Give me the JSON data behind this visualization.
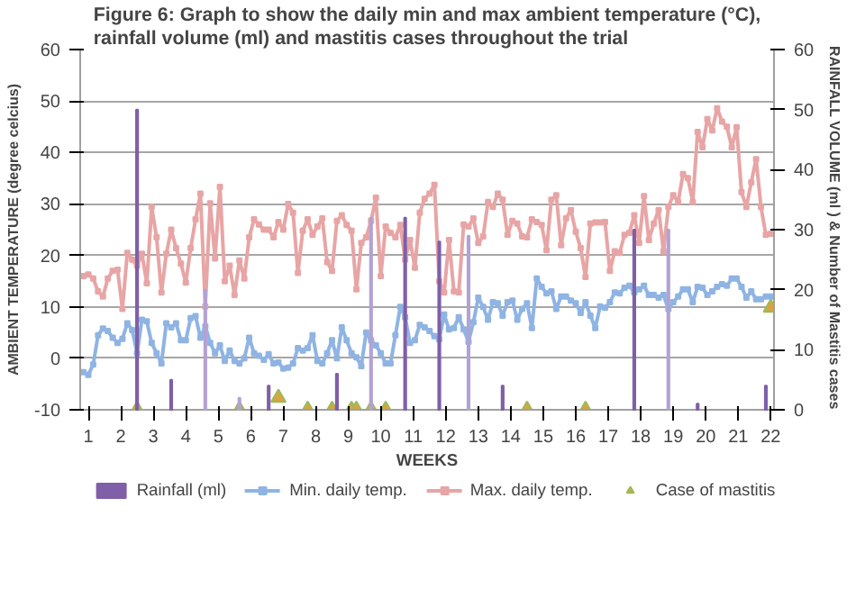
{
  "chart_data": {
    "type": "line",
    "title": "Figure 6: Graph to show the daily min and max ambient temperature (°C), rainfall volume (ml) and mastitis cases throughout the trial",
    "xlabel": "WEEKS",
    "ylabel": "AMBIENT TEMPERATURE (degree celcius)",
    "y2label": "RAINFALL VOLUME (ml ) & Number of Mastitis  cases",
    "x": [
      0.85,
      1,
      1.15,
      1.3,
      1.45,
      1.6,
      1.75,
      1.9,
      2.05,
      2.2,
      2.35,
      2.5,
      2.65,
      2.8,
      2.95,
      3.1,
      3.25,
      3.4,
      3.55,
      3.7,
      3.85,
      4,
      4.15,
      4.3,
      4.45,
      4.6,
      4.75,
      4.9,
      5.05,
      5.2,
      5.35,
      5.5,
      5.65,
      5.8,
      5.95,
      6.1,
      6.25,
      6.4,
      6.55,
      6.7,
      6.85,
      7,
      7.15,
      7.3,
      7.45,
      7.6,
      7.75,
      7.9,
      8.05,
      8.2,
      8.35,
      8.5,
      8.65,
      8.8,
      8.95,
      9.1,
      9.25,
      9.4,
      9.55,
      9.7,
      9.85,
      10,
      10.15,
      10.3,
      10.45,
      10.6,
      10.75,
      10.9,
      11.05,
      11.2,
      11.35,
      11.5,
      11.65,
      11.8,
      11.95,
      12.1,
      12.25,
      12.4,
      12.55,
      12.7,
      12.85,
      13,
      13.15,
      13.3,
      13.45,
      13.6,
      13.75,
      13.9,
      14.05,
      14.2,
      14.35,
      14.5,
      14.65,
      14.8,
      14.95,
      15.1,
      15.25,
      15.4,
      15.55,
      15.7,
      15.85,
      16,
      16.15,
      16.3,
      16.45,
      16.6,
      16.75,
      16.9,
      17.05,
      17.2,
      17.35,
      17.5,
      17.65,
      17.8,
      17.95,
      18.1,
      18.25,
      18.4,
      18.55,
      18.7,
      18.85,
      19,
      19.15,
      19.3,
      19.45,
      19.6,
      19.75,
      19.9,
      20.05,
      20.2,
      20.35,
      20.5,
      20.65,
      20.8,
      20.95,
      21.1,
      21.25,
      21.4,
      21.55,
      21.7,
      21.85,
      22
    ],
    "xlim": [
      0.75,
      22.1
    ],
    "xticks": [
      1,
      2,
      3,
      4,
      5,
      6,
      7,
      8,
      9,
      10,
      11,
      12,
      13,
      14,
      15,
      16,
      17,
      18,
      19,
      20,
      21,
      22
    ],
    "ylim": [
      -10,
      60
    ],
    "yticks": [
      -10,
      0,
      10,
      20,
      30,
      40,
      50,
      60
    ],
    "y2lim": [
      0,
      60
    ],
    "y2ticks": [
      0,
      10,
      20,
      30,
      40,
      50,
      60
    ],
    "grid": "y",
    "legend": "bottom",
    "series": [
      {
        "name": "Rainfall (ml)",
        "type": "bar",
        "axis": "y2",
        "x": [
          2.5,
          3.55,
          4.6,
          5.65,
          6.55,
          8.65,
          9.7,
          10.75,
          11.8,
          12.7,
          13.75,
          17.8,
          18.85,
          19.75,
          21.85
        ],
        "values": [
          50,
          5,
          20,
          2,
          4,
          6,
          32,
          32,
          28,
          29,
          4,
          30,
          30,
          1,
          4
        ],
        "colors": [
          "#7f5fa8",
          "#7f5fa8",
          "#b3a2d3",
          "#b3a2d3",
          "#7f5fa8",
          "#7f5fa8",
          "#b3a2d3",
          "#7f5fa8",
          "#7f5fa8",
          "#b3a2d3",
          "#7f5fa8",
          "#7f5fa8",
          "#b3a2d3",
          "#7f5fa8",
          "#7f5fa8"
        ]
      },
      {
        "name": "Min. daily temp.",
        "color": "#8fb4e3",
        "marker": "square",
        "values": [
          -2.7,
          -3.2,
          -1.2,
          4.5,
          5.8,
          5.3,
          4,
          3,
          3.8,
          6.8,
          5.5,
          1,
          7.5,
          7.2,
          3,
          1,
          -1,
          6.8,
          6,
          6.8,
          3.5,
          3.5,
          7.8,
          8.2,
          4,
          6.2,
          3,
          1,
          2.5,
          -0.5,
          1.5,
          -0.5,
          -1,
          0,
          4,
          1,
          0.5,
          -0.3,
          0.8,
          -1,
          -0.8,
          -2,
          -1.8,
          -1,
          2,
          1.5,
          2,
          4.5,
          -0.5,
          -1,
          1,
          3.5,
          0,
          6,
          3.5,
          1,
          0.2,
          -1.5,
          5,
          3.5,
          2.5,
          1,
          -1,
          -1,
          4.5,
          10,
          8,
          3,
          3.5,
          6.5,
          6,
          5.3,
          4.3,
          3.7,
          8.5,
          5.6,
          5.9,
          8,
          5.6,
          3.2,
          7,
          11.8,
          10,
          7.5,
          10.9,
          10.7,
          8.3,
          10.9,
          11.2,
          7.5,
          9.6,
          10.7,
          5.9,
          15.5,
          13.9,
          12.6,
          13,
          9.6,
          12,
          12,
          11.2,
          10.7,
          8.8,
          10.9,
          8.3,
          5.9,
          10.1,
          9.8,
          10.9,
          12.8,
          12.6,
          13.7,
          14.1,
          12.8,
          13.4,
          14.1,
          12.3,
          12.3,
          11.8,
          12.3,
          9.6,
          10.9,
          12,
          13.4,
          13.4,
          10.9,
          13.9,
          13.7,
          12.3,
          13,
          13.9,
          14.4,
          14.1,
          15.5,
          15.5,
          13.9,
          11.8,
          13,
          11.5,
          11.5,
          12,
          12
        ]
      },
      {
        "name": "Max. daily temp.",
        "color": "#e8a5a5",
        "marker": "square",
        "values": [
          16,
          16.3,
          15.5,
          13,
          12,
          15.5,
          17,
          17.2,
          9.6,
          20.5,
          19.2,
          18,
          20.3,
          14.6,
          29.4,
          23.5,
          12.8,
          20.3,
          25,
          21.4,
          18.4,
          14.7,
          21.4,
          27,
          32,
          10.1,
          30.1,
          19.4,
          33.3,
          15,
          18,
          12.3,
          19,
          15.5,
          23.5,
          27,
          26,
          25,
          25,
          23.5,
          26.5,
          25,
          30,
          28.3,
          16.6,
          24.8,
          27,
          24,
          25.6,
          27.2,
          18.7,
          17,
          26.7,
          27.8,
          25.9,
          24.8,
          13.4,
          22.4,
          23.5,
          26.7,
          31.2,
          16,
          25.6,
          24.4,
          23.5,
          25.9,
          19.2,
          23,
          17.6,
          28.3,
          31,
          32,
          33.7,
          15,
          12.8,
          23,
          13,
          12.8,
          26,
          25.6,
          27.2,
          22.4,
          23.7,
          30.4,
          29.4,
          32,
          30.8,
          24,
          26.7,
          26.2,
          23.7,
          23.5,
          27,
          26.5,
          25.9,
          21,
          30.8,
          31.7,
          22,
          27.2,
          28.8,
          24.6,
          21.4,
          15.8,
          26.2,
          26.4,
          26.4,
          26.5,
          17,
          20.8,
          20.5,
          24,
          24.4,
          27.8,
          22.4,
          31.5,
          23,
          26.2,
          28.8,
          20.8,
          29.4,
          31.7,
          30.4,
          35.8,
          35,
          30.4,
          44,
          41,
          46.5,
          44.3,
          48.6,
          46,
          45,
          41,
          44.9,
          32.3,
          29.4,
          34.2,
          38.7,
          29.4,
          24,
          24.2
        ]
      },
      {
        "name": "Case of mastitis",
        "type": "scatter",
        "axis": "y2",
        "marker": "triangle",
        "color": "#d9a441",
        "x": [
          2.5,
          5.65,
          6.85,
          7.75,
          8.5,
          9.1,
          9.25,
          9.7,
          10.15,
          14.5,
          16.3,
          22
        ],
        "values": [
          0,
          0,
          2,
          0,
          0,
          0,
          0,
          0,
          0,
          0,
          0,
          17
        ]
      }
    ]
  }
}
